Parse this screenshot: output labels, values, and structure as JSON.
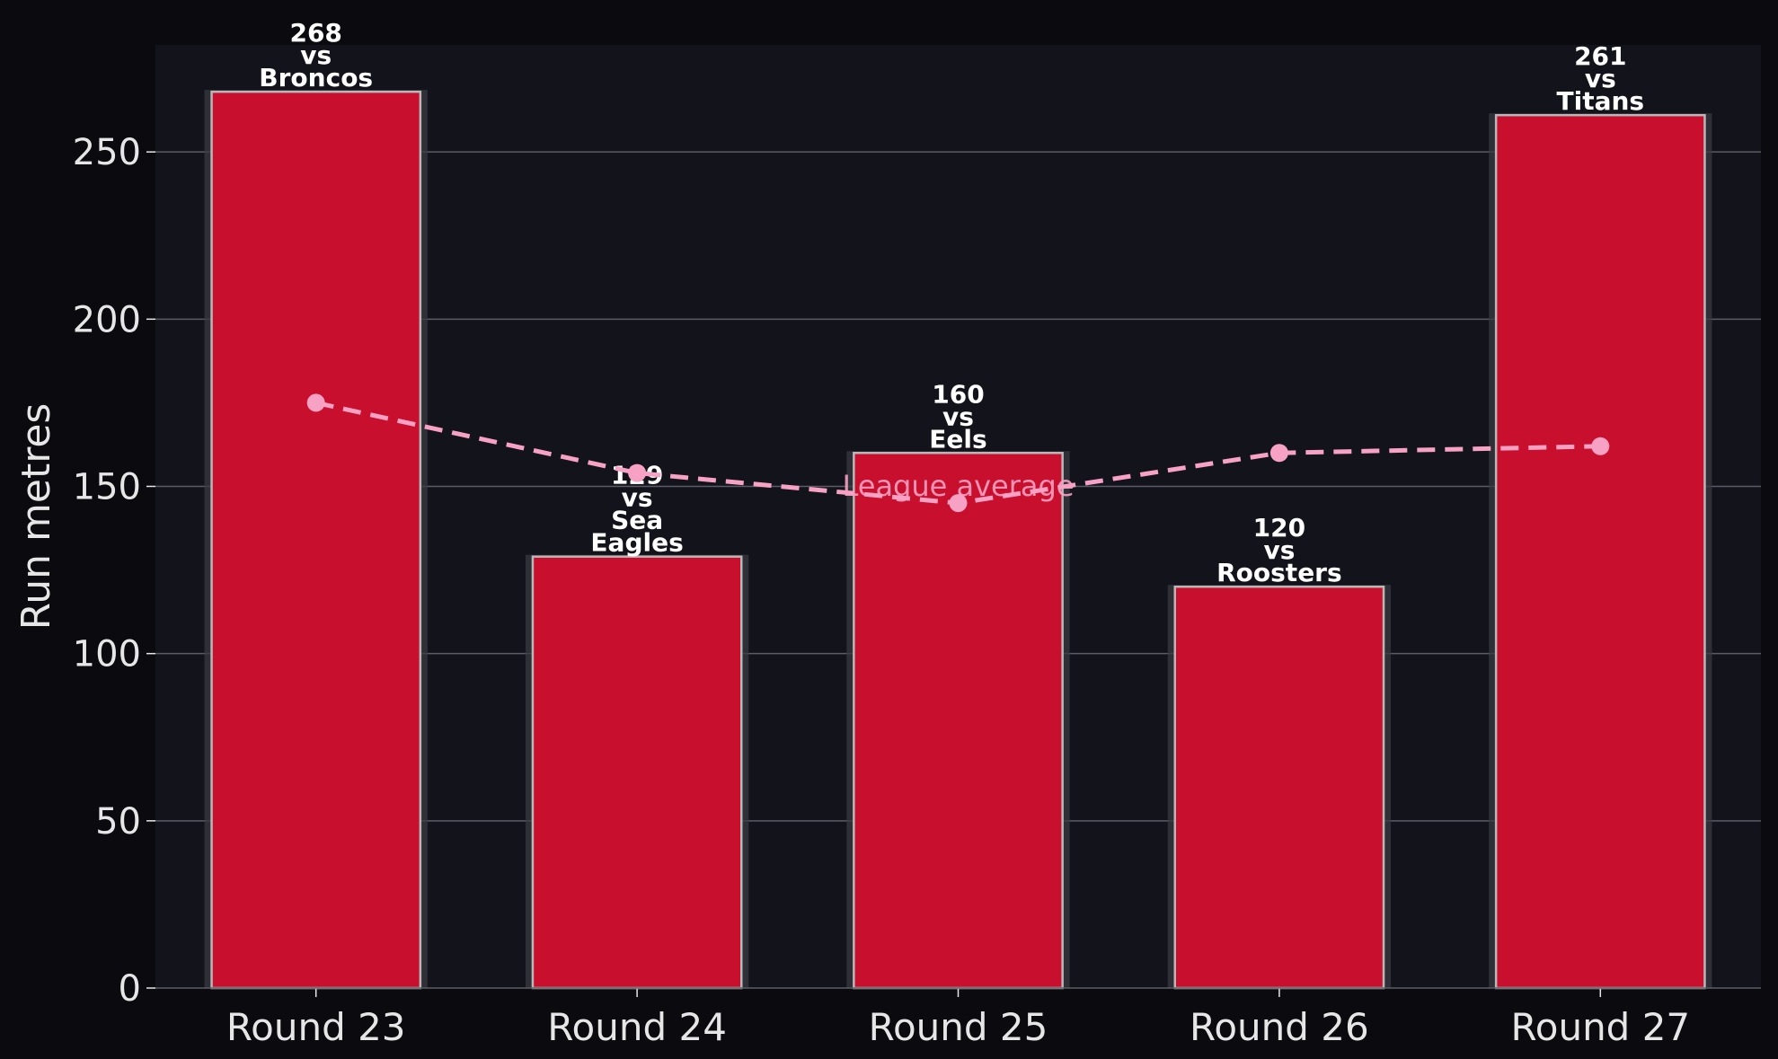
{
  "chart_data": {
    "type": "bar",
    "categories": [
      "Round 23",
      "Round 24",
      "Round 25",
      "Round 26",
      "Round 27"
    ],
    "series": [
      {
        "values": [
          268,
          129,
          160,
          120,
          261
        ],
        "value_labels": [
          "268",
          "129",
          "160",
          "120",
          "261"
        ],
        "label_lines": [
          [
            "vs",
            "Broncos"
          ],
          [
            "vs",
            "Sea",
            "Eagles"
          ],
          [
            "vs",
            "Eels"
          ],
          [
            "vs",
            "Roosters"
          ],
          [
            "vs",
            "Titans"
          ]
        ],
        "color": "#c8102e"
      },
      {
        "name": "League average",
        "type": "line",
        "values": [
          175,
          154,
          145,
          160,
          162
        ],
        "color": "#f7a1c4",
        "style": "dashed"
      }
    ],
    "ylabel": "Run metres",
    "ylim": [
      0,
      282
    ],
    "yticks": [
      {
        "value": 0,
        "label": "0"
      },
      {
        "value": 50,
        "label": "50"
      },
      {
        "value": 100,
        "label": "100"
      },
      {
        "value": 150,
        "label": "150"
      },
      {
        "value": 200,
        "label": "200"
      },
      {
        "value": 250,
        "label": "250"
      }
    ],
    "grid": true,
    "colors": {
      "background": "#0b0b0f",
      "plot_background": "#12131b",
      "grid": "#5c5c66",
      "text": "#e6e6e6",
      "label_text": "#ffffff",
      "bar_edge": "#b8b8b8",
      "bar_shadow": "#3a3a42"
    }
  }
}
